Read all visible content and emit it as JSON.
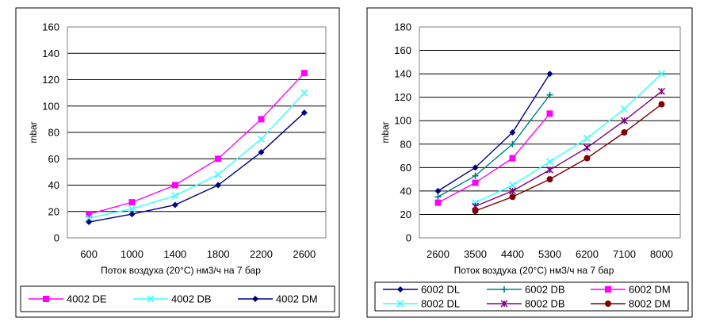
{
  "chart_data": [
    {
      "type": "line",
      "title": "",
      "xlabel": "Поток воздуха (20°C) нм3/ч на 7 бар",
      "ylabel": "mbar",
      "categories": [
        "600",
        "1000",
        "1400",
        "1800",
        "2200",
        "2600"
      ],
      "y_ticks": [
        "0",
        "20",
        "40",
        "60",
        "80",
        "100",
        "120",
        "140",
        "160"
      ],
      "ylim": [
        0,
        160
      ],
      "grid": true,
      "legend_position": "bottom",
      "series": [
        {
          "name": "4002 DE",
          "color": "#ff00ff",
          "marker": "square",
          "points": [
            [
              600,
              18
            ],
            [
              1000,
              27
            ],
            [
              1400,
              40
            ],
            [
              1800,
              60
            ],
            [
              2200,
              90
            ],
            [
              2600,
              125
            ]
          ]
        },
        {
          "name": "4002 DB",
          "color": "#33ffff",
          "marker": "x",
          "points": [
            [
              600,
              15
            ],
            [
              1000,
              22
            ],
            [
              1400,
              32
            ],
            [
              1800,
              48
            ],
            [
              2200,
              75
            ],
            [
              2600,
              110
            ]
          ]
        },
        {
          "name": "4002 DM",
          "color": "#000080",
          "marker": "diamond",
          "points": [
            [
              600,
              12
            ],
            [
              1000,
              18
            ],
            [
              1400,
              25
            ],
            [
              1800,
              40
            ],
            [
              2200,
              65
            ],
            [
              2600,
              95
            ]
          ]
        }
      ]
    },
    {
      "type": "line",
      "title": "",
      "xlabel": "Поток воздуха (20°C) нм3/ч на 7 бар",
      "ylabel": "mbar",
      "categories": [
        "2600",
        "3500",
        "4400",
        "5300",
        "6200",
        "7100",
        "8000"
      ],
      "y_ticks": [
        "0",
        "20",
        "40",
        "60",
        "80",
        "100",
        "120",
        "140",
        "160",
        "180"
      ],
      "ylim": [
        0,
        180
      ],
      "grid": true,
      "legend_position": "bottom",
      "series": [
        {
          "name": "6002 DL",
          "color": "#000080",
          "marker": "diamond",
          "points": [
            [
              2600,
              40
            ],
            [
              3500,
              60
            ],
            [
              4400,
              90
            ],
            [
              5300,
              140
            ]
          ]
        },
        {
          "name": "6002 DB",
          "color": "#008080",
          "marker": "plus",
          "points": [
            [
              2600,
              35
            ],
            [
              3500,
              53
            ],
            [
              4400,
              80
            ],
            [
              5300,
              122
            ]
          ]
        },
        {
          "name": "6002 DM",
          "color": "#ff00ff",
          "marker": "square",
          "points": [
            [
              2600,
              30
            ],
            [
              3500,
              47
            ],
            [
              4400,
              68
            ],
            [
              5300,
              106
            ]
          ]
        },
        {
          "name": "8002 DL",
          "color": "#33ffff",
          "marker": "x",
          "points": [
            [
              3500,
              30
            ],
            [
              4400,
              45
            ],
            [
              5300,
              65
            ],
            [
              6200,
              85
            ],
            [
              7100,
              110
            ],
            [
              8000,
              140
            ]
          ]
        },
        {
          "name": "8002 DB",
          "color": "#800080",
          "marker": "star",
          "points": [
            [
              3500,
              27
            ],
            [
              4400,
              40
            ],
            [
              5300,
              58
            ],
            [
              6200,
              77
            ],
            [
              7100,
              100
            ],
            [
              8000,
              125
            ]
          ]
        },
        {
          "name": "8002 DM",
          "color": "#800000",
          "marker": "circle",
          "points": [
            [
              3500,
              23
            ],
            [
              4400,
              35
            ],
            [
              5300,
              50
            ],
            [
              6200,
              68
            ],
            [
              7100,
              90
            ],
            [
              8000,
              114
            ]
          ]
        }
      ]
    }
  ]
}
